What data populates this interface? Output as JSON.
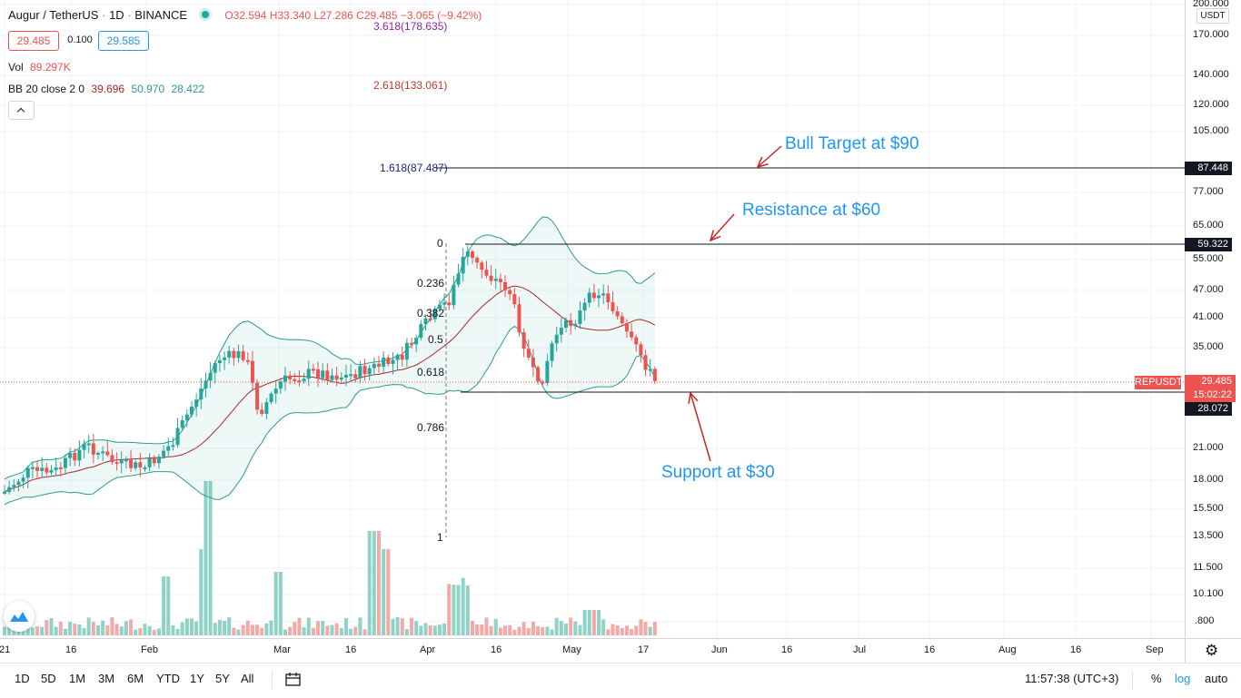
{
  "header": {
    "symbol": "Augur / TetherUS",
    "interval": "1D",
    "exchange": "BINANCE",
    "ohlc": {
      "o": "O32.594",
      "h": "H33.340",
      "l": "L27.286",
      "c": "C29.485",
      "chg": "−3.065 (−9.42%)"
    },
    "sell_price": "29.485",
    "spread": "0.100",
    "buy_price": "29.585",
    "vol_label": "Vol",
    "vol_value": "89.297K",
    "bb_label": "BB 20 close 2 0",
    "bb_mid": "39.696",
    "bb_upper": "50.970",
    "bb_lower": "28.422"
  },
  "price_axis": {
    "currency": "USDT",
    "ticks": [
      "200.000",
      "170.000",
      "140.000",
      "120.000",
      "105.000",
      "77.000",
      "65.000",
      "55.000",
      "47.000",
      "41.000",
      "35.000",
      "21.000",
      "18.000",
      "15.500",
      "13.500",
      "11.500",
      "10.100",
      ".800"
    ],
    "labels": {
      "bull_target": "87.448",
      "resistance": "59.322",
      "symbol": "REPUSDT",
      "current": "29.485",
      "countdown": "15:02:22",
      "support": "28.072"
    }
  },
  "time_axis": [
    "21",
    "16",
    "Feb",
    "Mar",
    "16",
    "Apr",
    "16",
    "May",
    "17",
    "Jun",
    "16",
    "Jul",
    "16",
    "Aug",
    "16",
    "Sep"
  ],
  "fib": {
    "ext_3618": "3.618(178.635)",
    "ext_2618": "2.618(133.061)",
    "ext_1618": "1.618(87.487)",
    "l0": "0",
    "l236": "0.236",
    "l382": "0.382",
    "l5": "0.5",
    "l618": "0.618",
    "l786": "0.786",
    "l1": "1"
  },
  "annotations": {
    "bull": "Bull Target at $90",
    "resistance": "Resistance at $60",
    "support": "Support at $30"
  },
  "toolbar": {
    "ranges": [
      "1D",
      "5D",
      "1M",
      "3M",
      "6M",
      "YTD",
      "1Y",
      "5Y",
      "All"
    ],
    "clock": "11:57:38 (UTC+3)",
    "percent": "%",
    "log": "log",
    "auto": "auto"
  },
  "colors": {
    "up": "#26a69a",
    "down": "#ef5350",
    "bb_band": "#2e9a8a",
    "bb_basis": "#a52a2a",
    "annotation": "#2196f3",
    "fib_ext": "#c0392b",
    "fib_blue": "#1a237e"
  }
}
